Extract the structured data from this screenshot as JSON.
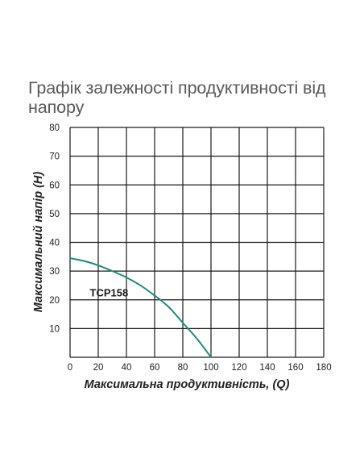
{
  "chart_data": {
    "type": "line",
    "title": "Графік залежності продуктивності від напору",
    "xlabel": "Максимальна продуктивність, (Q)",
    "ylabel": "Максимальний напір (H)",
    "xlim": [
      0,
      180
    ],
    "ylim": [
      0,
      80
    ],
    "x_ticks": [
      0,
      20,
      40,
      60,
      80,
      100,
      120,
      140,
      160,
      180
    ],
    "y_ticks": [
      10,
      20,
      30,
      40,
      50,
      60,
      70,
      80
    ],
    "grid": true,
    "legend": "inline",
    "series": [
      {
        "name": "TCP158",
        "color": "#1f8a80",
        "x": [
          0,
          10,
          20,
          30,
          40,
          50,
          60,
          70,
          80,
          90,
          100
        ],
        "y": [
          34.5,
          33.5,
          32,
          30,
          27.8,
          25,
          21.5,
          17.5,
          12,
          6.5,
          0
        ]
      }
    ]
  }
}
